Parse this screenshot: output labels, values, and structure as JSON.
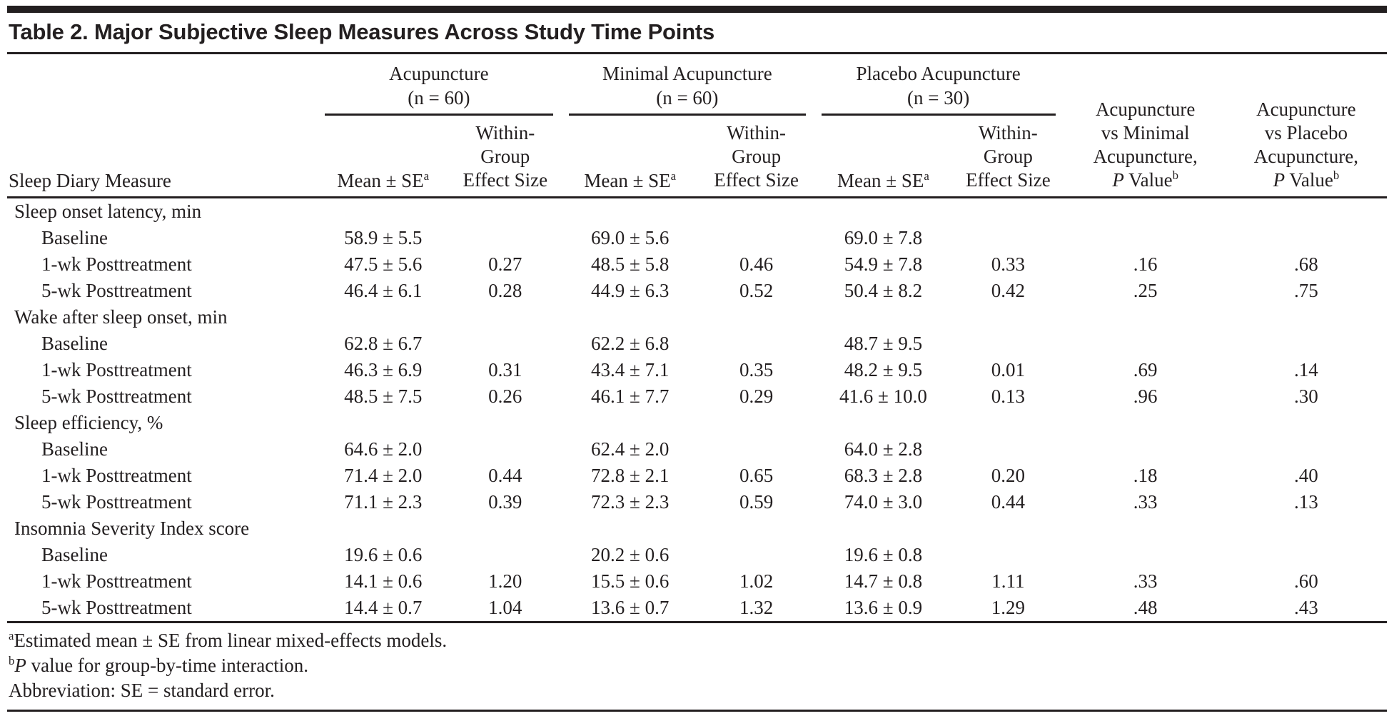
{
  "title": "Table 2. Major Subjective Sleep Measures Across Study Time Points",
  "colors": {
    "ink": "#231f20",
    "background": "#ffffff"
  },
  "header": {
    "row_label": "Sleep Diary Measure",
    "groups": [
      {
        "name": "Acupuncture",
        "n": "(n = 60)"
      },
      {
        "name": "Minimal Acupuncture",
        "n": "(n = 60)"
      },
      {
        "name": "Placebo Acupuncture",
        "n": "(n = 30)"
      }
    ],
    "sub": {
      "mean": "Mean ± SE",
      "mean_sup": "a",
      "effect_lines": [
        "Within-",
        "Group",
        "Effect Size"
      ]
    },
    "pcols": [
      {
        "lines": [
          "Acupuncture",
          "vs Minimal",
          "Acupuncture,"
        ],
        "p_italic": "P",
        "p_rest": " Value",
        "sup": "b"
      },
      {
        "lines": [
          "Acupuncture",
          "vs Placebo",
          "Acupuncture,"
        ],
        "p_italic": "P",
        "p_rest": " Value",
        "sup": "b"
      }
    ]
  },
  "sections": [
    {
      "label": "Sleep onset latency, min",
      "rows": [
        {
          "label": "Baseline",
          "cells": [
            "58.9 ± 5.5",
            "",
            "69.0 ± 5.6",
            "",
            "69.0 ± 7.8",
            "",
            "",
            ""
          ]
        },
        {
          "label": "1-wk Posttreatment",
          "cells": [
            "47.5 ± 5.6",
            "0.27",
            "48.5 ± 5.8",
            "0.46",
            "54.9 ± 7.8",
            "0.33",
            ".16",
            ".68"
          ]
        },
        {
          "label": "5-wk Posttreatment",
          "cells": [
            "46.4 ± 6.1",
            "0.28",
            "44.9 ± 6.3",
            "0.52",
            "50.4 ± 8.2",
            "0.42",
            ".25",
            ".75"
          ]
        }
      ]
    },
    {
      "label": "Wake after sleep onset, min",
      "rows": [
        {
          "label": "Baseline",
          "cells": [
            "62.8 ± 6.7",
            "",
            "62.2 ± 6.8",
            "",
            "48.7 ± 9.5",
            "",
            "",
            ""
          ]
        },
        {
          "label": "1-wk Posttreatment",
          "cells": [
            "46.3 ± 6.9",
            "0.31",
            "43.4 ± 7.1",
            "0.35",
            "48.2 ± 9.5",
            "0.01",
            ".69",
            ".14"
          ]
        },
        {
          "label": "5-wk Posttreatment",
          "cells": [
            "48.5 ± 7.5",
            "0.26",
            "46.1 ± 7.7",
            "0.29",
            "41.6 ± 10.0",
            "0.13",
            ".96",
            ".30"
          ]
        }
      ]
    },
    {
      "label": "Sleep efficiency, %",
      "rows": [
        {
          "label": "Baseline",
          "cells": [
            "64.6 ± 2.0",
            "",
            "62.4 ± 2.0",
            "",
            "64.0 ± 2.8",
            "",
            "",
            ""
          ]
        },
        {
          "label": "1-wk Posttreatment",
          "cells": [
            "71.4 ± 2.0",
            "0.44",
            "72.8 ± 2.1",
            "0.65",
            "68.3 ± 2.8",
            "0.20",
            ".18",
            ".40"
          ]
        },
        {
          "label": "5-wk Posttreatment",
          "cells": [
            "71.1 ± 2.3",
            "0.39",
            "72.3 ± 2.3",
            "0.59",
            "74.0 ± 3.0",
            "0.44",
            ".33",
            ".13"
          ]
        }
      ]
    },
    {
      "label": "Insomnia Severity Index score",
      "rows": [
        {
          "label": "Baseline",
          "cells": [
            "19.6 ± 0.6",
            "",
            "20.2 ± 0.6",
            "",
            "19.6 ± 0.8",
            "",
            "",
            ""
          ]
        },
        {
          "label": "1-wk Posttreatment",
          "cells": [
            "14.1 ± 0.6",
            "1.20",
            "15.5 ± 0.6",
            "1.02",
            "14.7 ± 0.8",
            "1.11",
            ".33",
            ".60"
          ]
        },
        {
          "label": "5-wk Posttreatment",
          "cells": [
            "14.4 ± 0.7",
            "1.04",
            "13.6 ± 0.7",
            "1.32",
            "13.6 ± 0.9",
            "1.29",
            ".48",
            ".43"
          ]
        }
      ]
    }
  ],
  "footnotes": [
    {
      "sup": "a",
      "italic": "",
      "text": "Estimated mean ± SE from linear mixed-effects models."
    },
    {
      "sup": "b",
      "italic": "P",
      "text": " value for group-by-time interaction."
    },
    {
      "sup": "",
      "italic": "",
      "text": "Abbreviation: SE = standard error."
    }
  ]
}
